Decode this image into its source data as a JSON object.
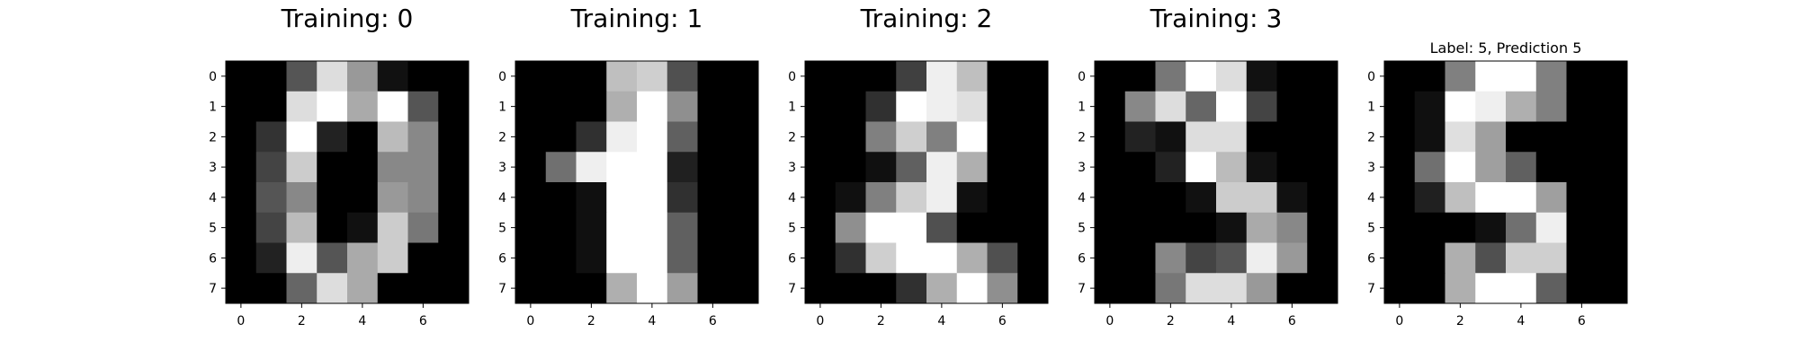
{
  "chart_data": [
    {
      "type": "heatmap",
      "title": "Training: 0",
      "colormap": "gray",
      "xticks": [
        0,
        2,
        4,
        6
      ],
      "yticks": [
        0,
        1,
        2,
        3,
        4,
        5,
        6,
        7
      ],
      "values": [
        [
          0,
          0,
          5,
          13,
          9,
          1,
          0,
          0
        ],
        [
          0,
          0,
          13,
          15,
          10,
          15,
          5,
          0
        ],
        [
          0,
          3,
          15,
          2,
          0,
          11,
          8,
          0
        ],
        [
          0,
          4,
          12,
          0,
          0,
          8,
          8,
          0
        ],
        [
          0,
          5,
          8,
          0,
          0,
          9,
          8,
          0
        ],
        [
          0,
          4,
          11,
          0,
          1,
          12,
          7,
          0
        ],
        [
          0,
          2,
          14,
          5,
          10,
          12,
          0,
          0
        ],
        [
          0,
          0,
          6,
          13,
          10,
          0,
          0,
          0
        ]
      ]
    },
    {
      "type": "heatmap",
      "title": "Training: 1",
      "colormap": "gray",
      "xticks": [
        0,
        2,
        4,
        6
      ],
      "yticks": [
        0,
        1,
        2,
        3,
        4,
        5,
        6,
        7
      ],
      "values": [
        [
          0,
          0,
          0,
          12,
          13,
          5,
          0,
          0
        ],
        [
          0,
          0,
          0,
          11,
          16,
          9,
          0,
          0
        ],
        [
          0,
          0,
          3,
          15,
          16,
          6,
          0,
          0
        ],
        [
          0,
          7,
          15,
          16,
          16,
          2,
          0,
          0
        ],
        [
          0,
          0,
          1,
          16,
          16,
          3,
          0,
          0
        ],
        [
          0,
          0,
          1,
          16,
          16,
          6,
          0,
          0
        ],
        [
          0,
          0,
          1,
          16,
          16,
          6,
          0,
          0
        ],
        [
          0,
          0,
          0,
          11,
          16,
          10,
          0,
          0
        ]
      ]
    },
    {
      "type": "heatmap",
      "title": "Training: 2",
      "colormap": "gray",
      "xticks": [
        0,
        2,
        4,
        6
      ],
      "yticks": [
        0,
        1,
        2,
        3,
        4,
        5,
        6,
        7
      ],
      "values": [
        [
          0,
          0,
          0,
          4,
          15,
          12,
          0,
          0
        ],
        [
          0,
          0,
          3,
          16,
          15,
          14,
          0,
          0
        ],
        [
          0,
          0,
          8,
          13,
          8,
          16,
          0,
          0
        ],
        [
          0,
          0,
          1,
          6,
          15,
          11,
          0,
          0
        ],
        [
          0,
          1,
          8,
          13,
          15,
          1,
          0,
          0
        ],
        [
          0,
          9,
          16,
          16,
          5,
          0,
          0,
          0
        ],
        [
          0,
          3,
          13,
          16,
          16,
          11,
          5,
          0
        ],
        [
          0,
          0,
          0,
          3,
          11,
          16,
          9,
          0
        ]
      ]
    },
    {
      "type": "heatmap",
      "title": "Training: 3",
      "colormap": "gray",
      "xticks": [
        0,
        2,
        4,
        6
      ],
      "yticks": [
        0,
        1,
        2,
        3,
        4,
        5,
        6,
        7
      ],
      "values": [
        [
          0,
          0,
          7,
          15,
          13,
          1,
          0,
          0
        ],
        [
          0,
          8,
          13,
          6,
          15,
          4,
          0,
          0
        ],
        [
          0,
          2,
          1,
          13,
          13,
          0,
          0,
          0
        ],
        [
          0,
          0,
          2,
          15,
          11,
          1,
          0,
          0
        ],
        [
          0,
          0,
          0,
          1,
          12,
          12,
          1,
          0
        ],
        [
          0,
          0,
          0,
          0,
          1,
          10,
          8,
          0
        ],
        [
          0,
          0,
          8,
          4,
          5,
          14,
          9,
          0
        ],
        [
          0,
          0,
          7,
          13,
          13,
          9,
          0,
          0
        ]
      ]
    },
    {
      "type": "heatmap",
      "title": "Label: 5, Prediction 5",
      "colormap": "gray",
      "xticks": [
        0,
        2,
        4,
        6
      ],
      "yticks": [
        0,
        1,
        2,
        3,
        4,
        5,
        6,
        7
      ],
      "values": [
        [
          0,
          0,
          8,
          16,
          16,
          8,
          0,
          0
        ],
        [
          0,
          1,
          16,
          15,
          11,
          8,
          0,
          0
        ],
        [
          0,
          1,
          14,
          10,
          0,
          0,
          0,
          0
        ],
        [
          0,
          7,
          16,
          10,
          6,
          0,
          0,
          0
        ],
        [
          0,
          2,
          12,
          16,
          16,
          10,
          0,
          0
        ],
        [
          0,
          0,
          0,
          1,
          7,
          15,
          0,
          0
        ],
        [
          0,
          0,
          11,
          5,
          13,
          13,
          0,
          0
        ],
        [
          0,
          0,
          11,
          16,
          16,
          6,
          0,
          0
        ]
      ]
    }
  ]
}
